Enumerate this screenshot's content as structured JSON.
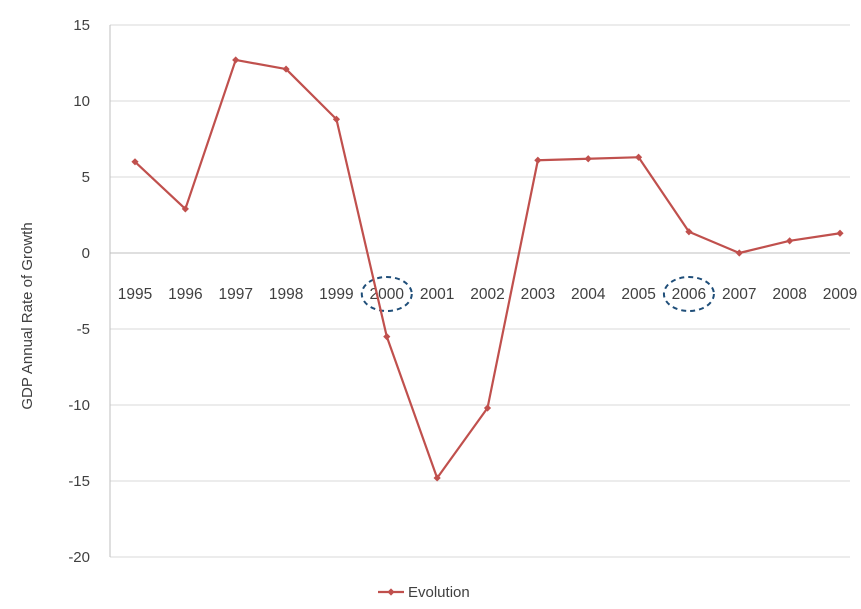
{
  "chart_data": {
    "type": "line",
    "title": "",
    "xlabel": "",
    "ylabel": "GDP Annual Rate of Growth",
    "ylim": [
      -20,
      15
    ],
    "yticks": [
      15,
      10,
      5,
      0,
      -5,
      -10,
      -15,
      -20
    ],
    "grid": true,
    "legend_position": "bottom",
    "categories": [
      "1995",
      "1996",
      "1997",
      "1998",
      "1999",
      "2000",
      "2001",
      "2002",
      "2003",
      "2004",
      "2005",
      "2006",
      "2007",
      "2008",
      "2009"
    ],
    "series": [
      {
        "name": "Evolution",
        "color": "#c0504d",
        "values": [
          6.0,
          2.9,
          12.7,
          12.1,
          8.8,
          -5.5,
          -14.8,
          -10.2,
          6.1,
          6.2,
          6.3,
          1.4,
          0.0,
          0.8,
          1.3
        ]
      }
    ],
    "highlighted_categories": [
      "2000",
      "2006"
    ],
    "highlight_color": "#1f4e79"
  }
}
